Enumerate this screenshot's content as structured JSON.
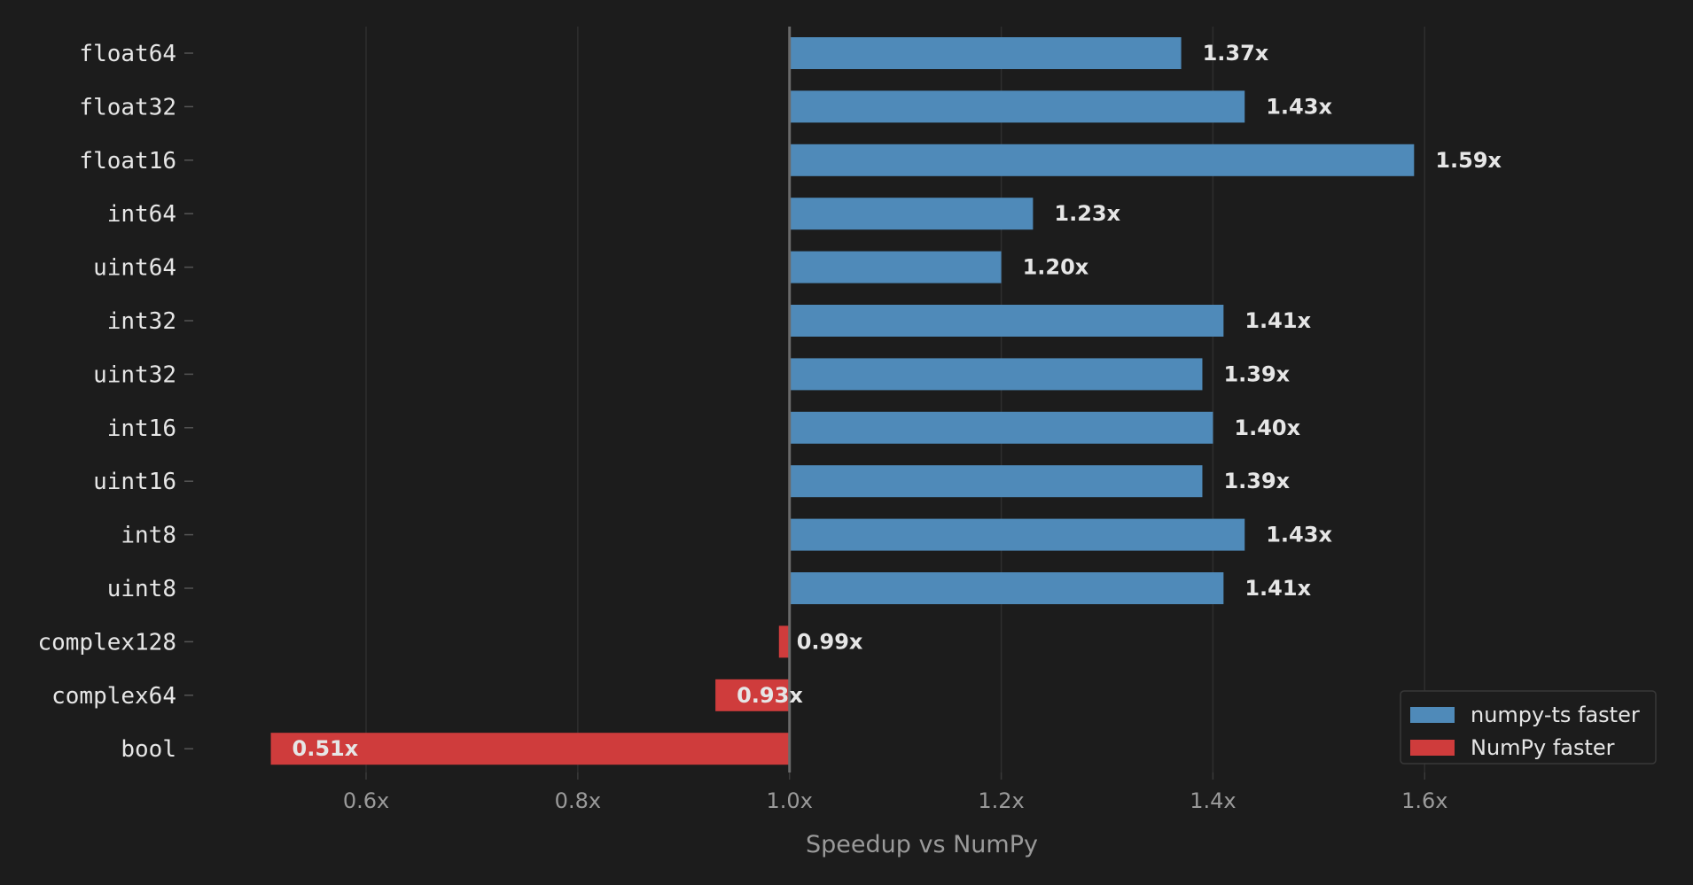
{
  "chart_data": {
    "type": "bar",
    "orientation": "horizontal",
    "categories": [
      "float64",
      "float32",
      "float16",
      "int64",
      "uint64",
      "int32",
      "uint32",
      "int16",
      "uint16",
      "int8",
      "uint8",
      "complex128",
      "complex64",
      "bool"
    ],
    "values": [
      1.37,
      1.43,
      1.59,
      1.23,
      1.2,
      1.41,
      1.39,
      1.4,
      1.39,
      1.43,
      1.41,
      0.99,
      0.93,
      0.51
    ],
    "data_labels": [
      "1.37x",
      "1.43x",
      "1.59x",
      "1.23x",
      "1.20x",
      "1.41x",
      "1.39x",
      "1.40x",
      "1.39x",
      "1.43x",
      "1.41x",
      "0.99x",
      "0.93x",
      "0.51x"
    ],
    "baseline": 1.0,
    "xlabel": "Speedup vs NumPy",
    "ylabel": "",
    "title": "",
    "xlim": [
      0.43,
      1.82
    ],
    "xticks": [
      0.6,
      0.8,
      1.0,
      1.2,
      1.4,
      1.6
    ],
    "xtick_labels": [
      "0.6x",
      "0.8x",
      "1.0x",
      "1.2x",
      "1.4x",
      "1.6x"
    ],
    "grid": "vertical",
    "legend": {
      "placement": "bottom-right",
      "entries": [
        {
          "label": "numpy-ts faster",
          "color": "#4f8ab9"
        },
        {
          "label": "NumPy faster",
          "color": "#cf3c3c"
        }
      ]
    },
    "colors": {
      "faster": "#4f8ab9",
      "slower": "#cf3c3c",
      "background": "#1c1c1c"
    }
  }
}
